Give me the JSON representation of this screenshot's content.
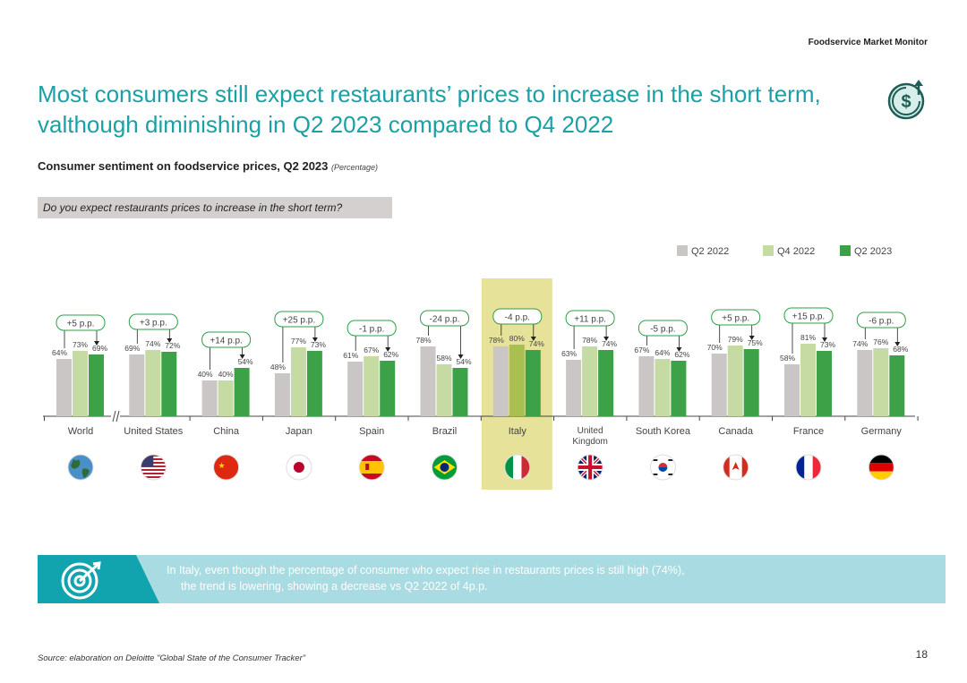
{
  "header": {
    "brand": "Foodservice Market Monitor",
    "title_line1": "Most consumers still expect restaurants’ prices to increase in the short term,",
    "title_line2": "valthough diminishing in Q2 2023 compared to Q4 2022",
    "icon": "dollar-up-arrow-icon"
  },
  "subtitle": {
    "main": "Consumer sentiment on foodservice prices, Q2 2023",
    "unit": "(Percentage)"
  },
  "question": "Do you expect restaurants prices to increase in the short term?",
  "colors": {
    "q2_2022": "#cbc6c6",
    "q4_2022": "#c5dba3",
    "q2_2023": "#3da148",
    "highlight": "#e6e29a",
    "italy_q4": "#a9bf52",
    "accent": "#1aa0a5",
    "callout": "#a9dbe2"
  },
  "chart_data": {
    "type": "bar",
    "title": "Consumer sentiment on foodservice prices, Q2 2023",
    "ylabel": "Percentage",
    "ylim": [
      0,
      100
    ],
    "grid": false,
    "legend_position": "top-right",
    "categories": [
      "World",
      "United States",
      "China",
      "Japan",
      "Spain",
      "Brazil",
      "Italy",
      "United Kingdom",
      "South Korea",
      "Canada",
      "France",
      "Germany"
    ],
    "category_display": [
      [
        "World"
      ],
      [
        "United States"
      ],
      [
        "China"
      ],
      [
        "Japan"
      ],
      [
        "Spain"
      ],
      [
        "Brazil"
      ],
      [
        "Italy"
      ],
      [
        "United",
        "Kingdom"
      ],
      [
        "South Korea"
      ],
      [
        "Canada"
      ],
      [
        "France"
      ],
      [
        "Germany"
      ]
    ],
    "series": [
      {
        "name": "Q2 2022",
        "values": [
          64,
          69,
          40,
          48,
          61,
          78,
          78,
          63,
          67,
          70,
          58,
          74
        ],
        "labels": [
          "64%",
          "69%",
          "40%",
          "48%",
          "61%",
          "78%",
          "78%",
          "63%",
          "67%",
          "70%",
          "58%",
          "74%"
        ]
      },
      {
        "name": "Q4 2022",
        "values": [
          73,
          74,
          40,
          77,
          67,
          58,
          80,
          78,
          64,
          79,
          81,
          76
        ],
        "labels": [
          "73%",
          "74%",
          "40%",
          "77%",
          "67%",
          "58%",
          "80%",
          "78%",
          "64%",
          "79%",
          "81%",
          "76%"
        ]
      },
      {
        "name": "Q2 2023",
        "values": [
          69,
          72,
          54,
          73,
          62,
          54,
          74,
          74,
          62,
          75,
          73,
          68
        ],
        "labels": [
          "69%",
          "72%",
          "54%",
          "73%",
          "62%",
          "54%",
          "74%",
          "74%",
          "62%",
          "75%",
          "73%",
          "68%"
        ]
      }
    ],
    "changes": [
      "+5 p.p.",
      "+3 p.p.",
      "+14 p.p.",
      "+25 p.p.",
      "-1 p.p.",
      "-24 p.p.",
      "-4 p.p.",
      "+11 p.p.",
      "-5 p.p.",
      "+5 p.p.",
      "+15 p.p.",
      "-6 p.p."
    ],
    "highlighted_category": "Italy",
    "axis_break_after": "World",
    "flag_icons": [
      "globe-icon",
      "flag-united-states-icon",
      "flag-china-icon",
      "flag-japan-icon",
      "flag-spain-icon",
      "flag-brazil-icon",
      "flag-italy-icon",
      "flag-united-kingdom-icon",
      "flag-south-korea-icon",
      "flag-canada-icon",
      "flag-france-icon",
      "flag-germany-icon"
    ]
  },
  "callout": {
    "icon": "target-icon",
    "line1": "In Italy, even though the percentage of consumer who expect rise in restaurants prices is still high (74%),",
    "line2": "the trend is lowering, showing a decrease vs Q2 2022 of 4p.p."
  },
  "footer": {
    "source": "Source: elaboration on Deloitte \"Global State of the Consumer Tracker\"",
    "page": "18"
  }
}
